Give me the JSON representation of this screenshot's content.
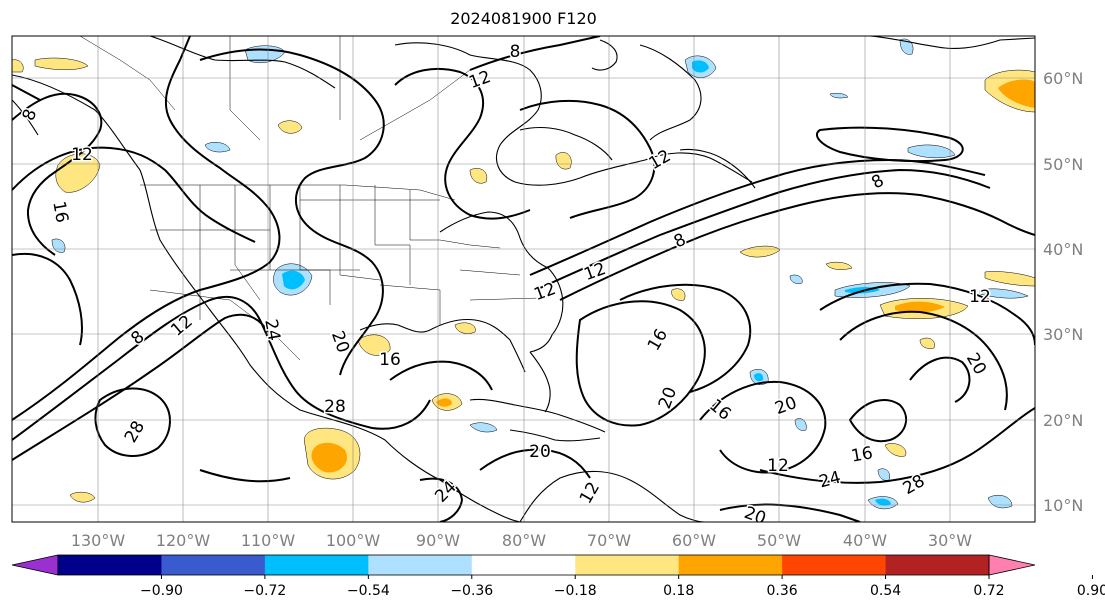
{
  "title": "2024081900 F120",
  "map": {
    "projection": "PlateCarree",
    "lon_range": [
      -135,
      -25
    ],
    "lat_range": [
      8,
      65
    ],
    "gridlines": true,
    "lat_labels": [
      "60°N",
      "50°N",
      "40°N",
      "30°N",
      "20°N",
      "10°N"
    ],
    "lon_labels": [
      "130°W",
      "120°W",
      "110°W",
      "100°W",
      "90°W",
      "80°W",
      "70°W",
      "60°W",
      "50°W",
      "40°W",
      "30°W"
    ],
    "label_color": "#808080"
  },
  "contours": {
    "color": "#000000",
    "labels": [
      "8",
      "12",
      "12",
      "8",
      "12",
      "16",
      "8",
      "12",
      "12",
      "8",
      "12",
      "8",
      "12",
      "16",
      "20",
      "24",
      "16",
      "28",
      "28",
      "20",
      "24",
      "20",
      "16",
      "20",
      "12",
      "24",
      "16",
      "28",
      "20",
      "20",
      "12"
    ]
  },
  "colorbar": {
    "extend": "both",
    "ticks": [
      "−0.90",
      "−0.72",
      "−0.54",
      "−0.36",
      "−0.18",
      "0.18",
      "0.36",
      "0.54",
      "0.72",
      "0.90"
    ],
    "colors": [
      "#9b30d0",
      "#00008b",
      "#3a5bd0",
      "#00bfff",
      "#aee0ff",
      "#ffffff",
      "#ffe680",
      "#ffa500",
      "#ff4500",
      "#b22222",
      "#ff80b0"
    ]
  }
}
